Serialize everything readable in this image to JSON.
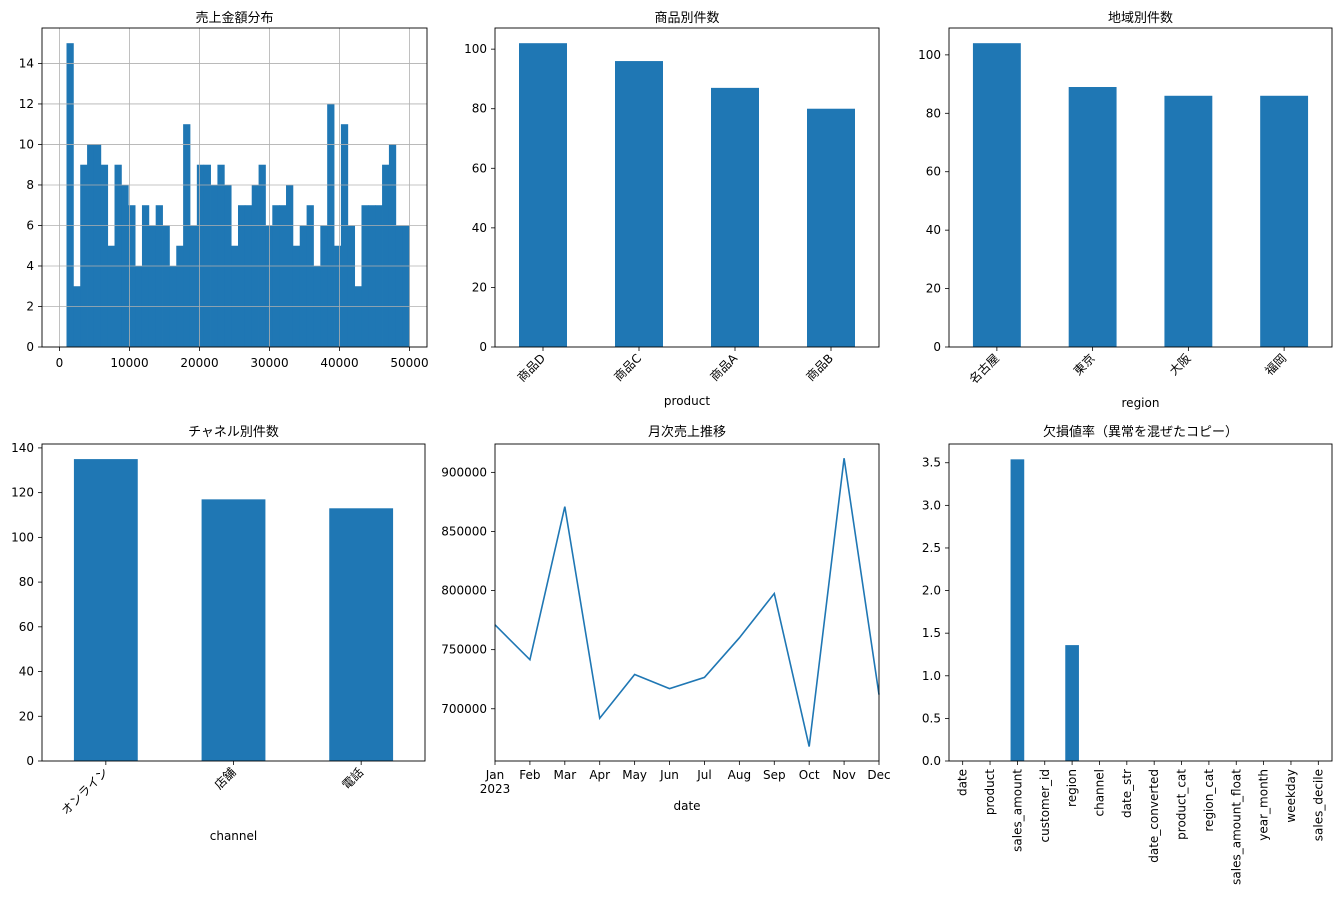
{
  "colors": {
    "bar": "#1f77b4",
    "line": "#1f77b4",
    "grid": "#b0b0b0"
  },
  "chart_data": [
    {
      "type": "bar",
      "title": "売上金額分布",
      "xlabel": "",
      "ylabel": "",
      "grid": true,
      "xlim": [
        -2500,
        52500
      ],
      "ylim": [
        0,
        15.75
      ],
      "xticks": [
        0,
        10000,
        20000,
        30000,
        40000,
        50000
      ],
      "xtick_labels": [
        "0",
        "10000",
        "20000",
        "30000",
        "40000",
        "50000"
      ],
      "yticks": [
        0,
        2,
        4,
        6,
        8,
        10,
        12,
        14
      ],
      "ytick_labels": [
        "0",
        "2",
        "4",
        "6",
        "8",
        "10",
        "12",
        "14"
      ],
      "bin_start": 1000,
      "bin_end": 50000,
      "values": [
        15,
        3,
        9,
        10,
        10,
        9,
        5,
        9,
        8,
        7,
        4,
        7,
        6,
        7,
        6,
        4,
        5,
        11,
        6,
        9,
        9,
        8,
        9,
        8,
        5,
        7,
        7,
        8,
        9,
        6,
        7,
        7,
        8,
        5,
        6,
        7,
        4,
        6,
        12,
        5,
        11,
        6,
        3,
        7,
        7,
        7,
        9,
        10,
        6,
        6
      ]
    },
    {
      "type": "bar",
      "title": "商品別件数",
      "xlabel": "product",
      "ylabel": "",
      "categories": [
        "商品D",
        "商品C",
        "商品A",
        "商品B"
      ],
      "values": [
        102,
        96,
        87,
        80
      ],
      "ylim": [
        0,
        107.1
      ],
      "yticks": [
        0,
        20,
        40,
        60,
        80,
        100
      ],
      "ytick_labels": [
        "0",
        "20",
        "40",
        "60",
        "80",
        "100"
      ]
    },
    {
      "type": "bar",
      "title": "地域別件数",
      "xlabel": "region",
      "ylabel": "",
      "categories": [
        "名古屋",
        "東京",
        "大阪",
        "福岡"
      ],
      "values": [
        104,
        89,
        86,
        86
      ],
      "ylim": [
        0,
        109.2
      ],
      "yticks": [
        0,
        20,
        40,
        60,
        80,
        100
      ],
      "ytick_labels": [
        "0",
        "20",
        "40",
        "60",
        "80",
        "100"
      ]
    },
    {
      "type": "bar",
      "title": "チャネル別件数",
      "xlabel": "channel",
      "ylabel": "",
      "categories": [
        "オンライン",
        "店舗",
        "電話"
      ],
      "values": [
        135,
        117,
        113
      ],
      "ylim": [
        0,
        141.75
      ],
      "yticks": [
        0,
        20,
        40,
        60,
        80,
        100,
        120,
        140
      ],
      "ytick_labels": [
        "0",
        "20",
        "40",
        "60",
        "80",
        "100",
        "120",
        "140"
      ]
    },
    {
      "type": "line",
      "title": "月次売上推移",
      "xlabel": "date",
      "ylabel": "",
      "x": [
        "2023-01",
        "2023-02",
        "2023-03",
        "2023-04",
        "2023-05",
        "2023-06",
        "2023-07",
        "2023-08",
        "2023-09",
        "2023-10",
        "2023-11",
        "2023-12"
      ],
      "xtick_labels": [
        "Jan",
        "Feb",
        "Mar",
        "Apr",
        "May",
        "Jun",
        "Jul",
        "Aug",
        "Sep",
        "Oct",
        "Nov",
        "Dec"
      ],
      "year_label": "2023",
      "values": [
        771000,
        741500,
        871000,
        692000,
        729000,
        717000,
        726500,
        760000,
        797500,
        668000,
        912000,
        712000
      ],
      "ylim": [
        655800,
        924000
      ],
      "yticks": [
        700000,
        750000,
        800000,
        850000,
        900000
      ],
      "ytick_labels": [
        "700000",
        "750000",
        "800000",
        "850000",
        "900000"
      ]
    },
    {
      "type": "bar",
      "title": "欠損値率（異常を混ぜたコピー）",
      "xlabel": "",
      "ylabel": "",
      "categories": [
        "date",
        "product",
        "sales_amount",
        "customer_id",
        "region",
        "channel",
        "date_str",
        "date_converted",
        "product_cat",
        "region_cat",
        "sales_amount_float",
        "year_month",
        "weekday",
        "sales_decile"
      ],
      "values": [
        0,
        0,
        3.54,
        0,
        1.36,
        0,
        0,
        0,
        0,
        0,
        0,
        0,
        0,
        0
      ],
      "ylim": [
        0,
        3.72
      ],
      "yticks": [
        0,
        0.5,
        1.0,
        1.5,
        2.0,
        2.5,
        3.0,
        3.5
      ],
      "ytick_labels": [
        "0.0",
        "0.5",
        "1.0",
        "1.5",
        "2.0",
        "2.5",
        "3.0",
        "3.5"
      ]
    }
  ]
}
